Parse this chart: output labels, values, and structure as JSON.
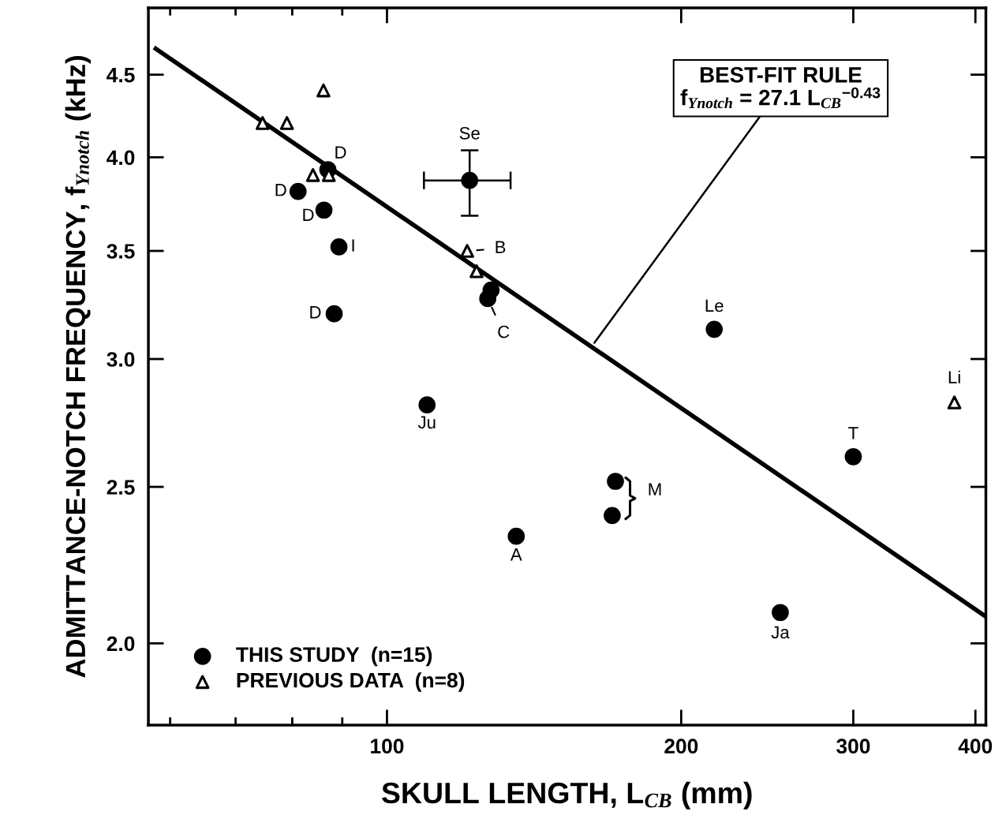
{
  "chart_data": {
    "type": "scatter",
    "xlabel": "SKULL LENGTH, L$_{CB}$ (mm)",
    "ylabel": "ADMITTANCE-NOTCH FREQUENCY, f$_{Ynotch}$ (kHz)",
    "log": "xy",
    "xlim": [
      57,
      410
    ],
    "xticks": [
      100,
      200,
      300,
      400
    ],
    "ylim": [
      1.78,
      4.95
    ],
    "yticks": [
      {
        "value": 2,
        "label": "2.0"
      },
      2.5,
      {
        "value": 3,
        "label": "3.0"
      },
      3.5,
      {
        "value": 4,
        "label": "4.0"
      },
      4.5
    ],
    "grid": false,
    "legend": "bottom left",
    "series": [
      {
        "name": "THIS STUDY  (n=15)",
        "type": "scatter",
        "marker": "circle",
        "color": "#000000",
        "x": [
          81.1,
          87.0,
          86.2,
          89.3,
          88.3,
          121.5,
          127.8,
          126.8,
          109.9,
          135.6,
          171.3,
          170.0,
          216.2,
          300,
          252.6
        ],
        "values": [
          3.81,
          3.93,
          3.71,
          3.52,
          3.2,
          3.87,
          3.31,
          3.27,
          2.81,
          2.33,
          2.52,
          2.4,
          3.13,
          2.61,
          2.09
        ],
        "errors": [
          null,
          null,
          null,
          null,
          null,
          [
            3.68,
            4.04
          ],
          null,
          null,
          null,
          null,
          null,
          null,
          null,
          null,
          null
        ],
        "xerrors": [
          null,
          null,
          null,
          null,
          null,
          [
            109.1,
            133.8
          ],
          null,
          null,
          null,
          null,
          null,
          null,
          null,
          null,
          null
        ]
      },
      {
        "name": "PREVIOUS DATA  (n=8)",
        "type": "scatter",
        "marker": "triangle",
        "color": "#000000",
        "x": [
          74.6,
          79.0,
          86.1,
          84.0,
          87.2,
          120.8,
          123.5,
          380.7
        ],
        "values": [
          4.2,
          4.2,
          4.4,
          3.9,
          3.9,
          3.5,
          3.4,
          2.82
        ]
      },
      {
        "type": "line",
        "color": "#000000",
        "x": [
          58,
          409
        ],
        "values": [
          4.67,
          2.08
        ]
      }
    ],
    "annotations": [
      {
        "text": "D",
        "x": 81.1,
        "y": 3.81
      },
      {
        "text": "D",
        "x": 87.0,
        "y": 3.93
      },
      {
        "text": "D",
        "x": 86.2,
        "y": 3.71
      },
      {
        "text": "I",
        "x": 89.3,
        "y": 3.52
      },
      {
        "text": "D",
        "x": 88.3,
        "y": 3.2
      },
      {
        "text": "Se",
        "x": 121.5,
        "y": 3.87
      },
      {
        "text": "B",
        "x": 120.8,
        "y": 3.5
      },
      {
        "text": "C",
        "x": 126.8,
        "y": 3.27
      },
      {
        "text": "Ju",
        "x": 109.9,
        "y": 2.81
      },
      {
        "text": "A",
        "x": 135.6,
        "y": 2.33
      },
      {
        "text": "M",
        "x": 171.3,
        "y": 2.52
      },
      {
        "text": "Le",
        "x": 216.2,
        "y": 3.13
      },
      {
        "text": "T",
        "x": 300,
        "y": 2.61
      },
      {
        "text": "Ja",
        "x": 252.6,
        "y": 2.09
      },
      {
        "text": "Li",
        "x": 380.7,
        "y": 2.82
      },
      {
        "text": "BEST-FIT RULE\nf$_{Ynotch}$ = 27.1 L$_{CB}$$^{−0.43}$",
        "x": 163,
        "y": 3.07
      }
    ]
  }
}
